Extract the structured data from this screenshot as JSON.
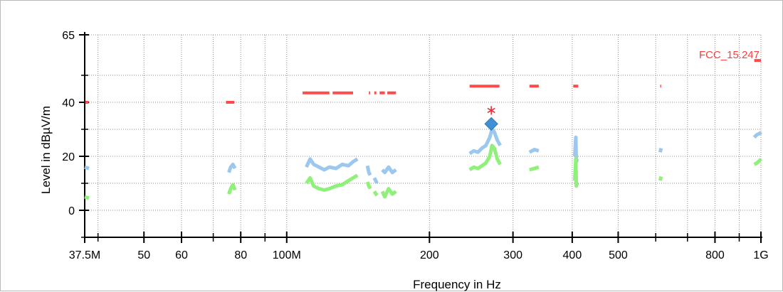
{
  "chart_data": {
    "type": "line",
    "title": "",
    "xlabel": "Frequency in Hz",
    "ylabel": "Level in dBµV/m",
    "x_scale": "log",
    "xlim": [
      37.5,
      1000
    ],
    "ylim": [
      -10,
      65
    ],
    "x_ticks": [
      {
        "value": 37.5,
        "label": "37.5M"
      },
      {
        "value": 50,
        "label": "50"
      },
      {
        "value": 60,
        "label": "60"
      },
      {
        "value": 80,
        "label": "80"
      },
      {
        "value": 100,
        "label": "100M"
      },
      {
        "value": 200,
        "label": "200"
      },
      {
        "value": 300,
        "label": "300"
      },
      {
        "value": 400,
        "label": "400"
      },
      {
        "value": 500,
        "label": "500"
      },
      {
        "value": 800,
        "label": "800"
      },
      {
        "value": 1000,
        "label": "1G"
      }
    ],
    "x_minor_ticks": [
      40,
      70,
      90,
      600,
      700,
      900
    ],
    "y_ticks": [
      {
        "value": 0,
        "label": "0"
      },
      {
        "value": 20,
        "label": "20"
      },
      {
        "value": 40,
        "label": "40"
      },
      {
        "value": 65,
        "label": "65"
      }
    ],
    "y_minor_ticks": [
      -10,
      10,
      30,
      50
    ],
    "grid": true,
    "limit_label": "FCC_15.247",
    "limit_label_color": "#ff3b3b",
    "series": [
      {
        "color": "#ff4a4a",
        "style": "limit",
        "segments": [
          [
            [
              37.6,
              40
            ],
            [
              38.2,
              40
            ]
          ],
          [
            [
              74.5,
              40
            ],
            [
              77.5,
              40
            ]
          ],
          [
            [
              108,
              43.5
            ],
            [
              123,
              43.5
            ]
          ],
          [
            [
              125,
              43.5
            ],
            [
              138,
              43.5
            ]
          ],
          [
            [
              149,
              43.5
            ],
            [
              150,
              43.5
            ]
          ],
          [
            [
              153,
              43.5
            ],
            [
              154.5,
              43.5
            ]
          ],
          [
            [
              157,
              43.5
            ],
            [
              161,
              43.5
            ]
          ],
          [
            [
              163,
              43.5
            ],
            [
              170,
              43.5
            ]
          ],
          [
            [
              243,
              46
            ],
            [
              281,
              46
            ]
          ],
          [
            [
              325,
              46
            ],
            [
              340,
              46
            ]
          ],
          [
            [
              402,
              46
            ],
            [
              412,
              46
            ]
          ],
          [
            [
              613,
              46
            ],
            [
              616,
              46
            ]
          ],
          [
            [
              968,
              55.5
            ],
            [
              1000,
              55.5
            ]
          ]
        ]
      },
      {
        "color": "#9cc7ef",
        "style": "trace",
        "segments": [
          [
            [
              37.5,
              16
            ],
            [
              38.3,
              15.5
            ]
          ],
          [
            [
              75.5,
              14
            ],
            [
              76.2,
              16
            ],
            [
              77,
              17
            ],
            [
              77.8,
              15.5
            ]
          ],
          [
            [
              110,
              16
            ],
            [
              112,
              19
            ],
            [
              114,
              17
            ],
            [
              117,
              16
            ],
            [
              120,
              15
            ],
            [
              123,
              16
            ],
            [
              127,
              15.5
            ],
            [
              131,
              17
            ],
            [
              135,
              16.5
            ],
            [
              138,
              18
            ],
            [
              141,
              19
            ]
          ],
          [
            [
              148,
              16.5
            ],
            [
              149,
              14
            ],
            [
              150,
              13
            ]
          ],
          [
            [
              153,
              12
            ],
            [
              155,
              10
            ]
          ],
          [
            [
              159,
              15
            ],
            [
              161,
              14
            ],
            [
              164,
              16
            ],
            [
              167,
              14
            ],
            [
              170,
              15
            ]
          ],
          [
            [
              243,
              21
            ],
            [
              248,
              22
            ],
            [
              253,
              21.5
            ],
            [
              258,
              23
            ],
            [
              263,
              24
            ],
            [
              268,
              27
            ],
            [
              271,
              30
            ],
            [
              274,
              29
            ],
            [
              278,
              26
            ],
            [
              282,
              24
            ]
          ],
          [
            [
              325,
              21.5
            ],
            [
              333,
              22.5
            ],
            [
              340,
              22
            ]
          ],
          [
            [
              405,
              20
            ],
            [
              407,
              27
            ],
            [
              408,
              18
            ],
            [
              410,
              19
            ]
          ],
          [
            [
              613,
              21.5
            ],
            [
              616,
              23
            ]
          ],
          [
            [
              968,
              27
            ],
            [
              980,
              28
            ],
            [
              995,
              28.5
            ],
            [
              1000,
              29
            ]
          ]
        ]
      },
      {
        "color": "#8ff07a",
        "style": "trace",
        "segments": [
          [
            [
              37.5,
              5
            ],
            [
              38.3,
              4.5
            ]
          ],
          [
            [
              75.5,
              6
            ],
            [
              76.2,
              8
            ],
            [
              77,
              9.5
            ],
            [
              77.8,
              7.5
            ]
          ],
          [
            [
              110,
              10
            ],
            [
              112,
              12
            ],
            [
              114,
              9
            ],
            [
              117,
              8
            ],
            [
              120,
              7.5
            ],
            [
              123,
              8
            ],
            [
              127,
              9
            ],
            [
              131,
              9.5
            ],
            [
              135,
              11
            ],
            [
              138,
              12
            ],
            [
              141,
              13
            ]
          ],
          [
            [
              148,
              10.5
            ],
            [
              149,
              9
            ],
            [
              150,
              8
            ]
          ],
          [
            [
              153,
              7
            ],
            [
              155,
              5.5
            ]
          ],
          [
            [
              159,
              7
            ],
            [
              161,
              5
            ],
            [
              164,
              8
            ],
            [
              167,
              6
            ],
            [
              170,
              7
            ]
          ],
          [
            [
              243,
              15
            ],
            [
              248,
              16
            ],
            [
              253,
              15.5
            ],
            [
              258,
              16.5
            ],
            [
              263,
              17.5
            ],
            [
              268,
              20
            ],
            [
              271,
              24
            ],
            [
              274,
              23
            ],
            [
              278,
              19
            ],
            [
              282,
              17
            ]
          ],
          [
            [
              325,
              15
            ],
            [
              333,
              15.5
            ],
            [
              340,
              16
            ]
          ],
          [
            [
              405,
              11
            ],
            [
              407,
              19
            ],
            [
              408,
              9
            ],
            [
              410,
              10
            ]
          ],
          [
            [
              613,
              11
            ],
            [
              616,
              12.5
            ]
          ],
          [
            [
              968,
              17
            ],
            [
              980,
              17.5
            ],
            [
              995,
              18.5
            ],
            [
              1000,
              19
            ]
          ]
        ]
      }
    ],
    "markers": [
      {
        "shape": "asterisk",
        "x": 270,
        "y": 37,
        "color": "#e8303a"
      },
      {
        "shape": "diamond",
        "x": 270,
        "y": 32,
        "color": "#3f8fd4"
      }
    ]
  }
}
